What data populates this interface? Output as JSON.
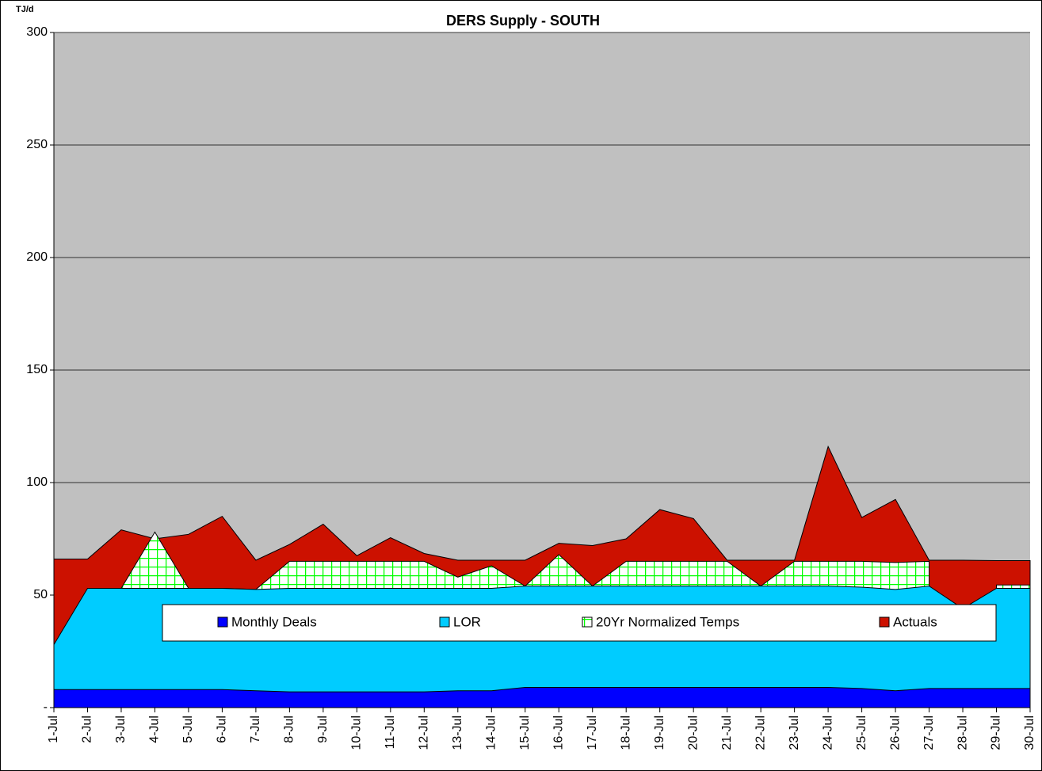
{
  "chart_data": {
    "type": "area",
    "title": "DERS Supply - SOUTH",
    "y_axis_label": "TJ/d",
    "categories": [
      "1-Jul",
      "2-Jul",
      "3-Jul",
      "4-Jul",
      "5-Jul",
      "6-Jul",
      "7-Jul",
      "8-Jul",
      "9-Jul",
      "10-Jul",
      "11-Jul",
      "12-Jul",
      "13-Jul",
      "14-Jul",
      "15-Jul",
      "16-Jul",
      "17-Jul",
      "18-Jul",
      "19-Jul",
      "20-Jul",
      "21-Jul",
      "22-Jul",
      "23-Jul",
      "24-Jul",
      "25-Jul",
      "26-Jul",
      "27-Jul",
      "28-Jul",
      "29-Jul",
      "30-Jul"
    ],
    "series": [
      {
        "name": "Monthly Deals",
        "color": "#0000ff",
        "values": [
          8,
          8,
          8,
          8,
          8,
          8,
          7.5,
          7,
          7,
          7,
          7,
          7,
          7.5,
          7.5,
          9,
          9,
          9,
          9,
          9,
          9,
          9,
          9,
          9,
          9,
          8.5,
          7.5,
          8.5,
          8.5,
          8.5,
          8.5
        ]
      },
      {
        "name": "LOR",
        "color": "#00ccff",
        "values": [
          28,
          53,
          53,
          53,
          53,
          53,
          52.5,
          53,
          53,
          53,
          53,
          53,
          53,
          53,
          54,
          54,
          54,
          54,
          54,
          54,
          54,
          54,
          54,
          54,
          53.5,
          52.5,
          54,
          44,
          53,
          53
        ]
      },
      {
        "name": "20Yr Normalized Temps",
        "color": "#00ff00",
        "hatch": true,
        "values": [
          null,
          null,
          53,
          78,
          53,
          53,
          52.5,
          65,
          65,
          65,
          65,
          65,
          58,
          63,
          54,
          68,
          54,
          65,
          65,
          65,
          65,
          54,
          65,
          65,
          65,
          64.5,
          65,
          null,
          54.5,
          54.5
        ]
      },
      {
        "name": "Actuals",
        "color": "#cc1100",
        "values": [
          66,
          66,
          79,
          75,
          77,
          85,
          65.5,
          72.5,
          81.5,
          67.5,
          75.5,
          68.5,
          65.5,
          65.5,
          65.5,
          73,
          72,
          75,
          88,
          84,
          65.5,
          65.5,
          65.5,
          116,
          84.5,
          92.5,
          65.5,
          65.5,
          65.3,
          65.3
        ]
      }
    ],
    "ylim": [
      0,
      300
    ],
    "yticks": [
      {
        "value": 0,
        "label": "-"
      },
      50,
      100,
      150,
      200,
      250,
      300
    ],
    "grid": true,
    "plot_background": "#c0c0c0"
  }
}
